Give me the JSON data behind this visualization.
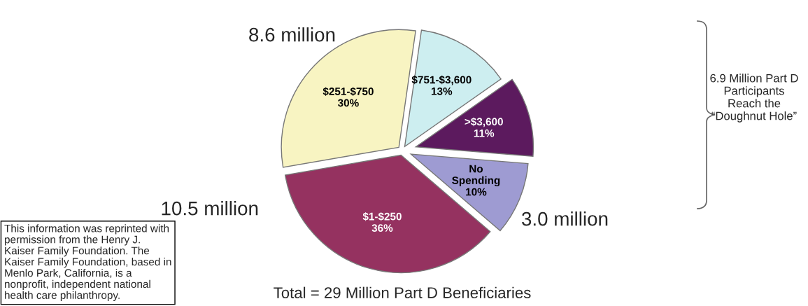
{
  "chart_data": {
    "type": "pie",
    "categories": [
      "$751-$3,600",
      "$251-$750",
      "$1-$250",
      "No\nSpending",
      ">$3,600"
    ],
    "values": [
      13,
      30,
      36,
      10,
      11
    ],
    "colors": [
      "#cdeef0",
      "#f8f4c2",
      "#953260",
      "#9e9bd2",
      "#5c1a5e"
    ],
    "value_labels": [
      "13%",
      "30%",
      "36%",
      "10%",
      "11%"
    ],
    "annotations": [
      "8.6 million",
      "10.5 million",
      "3.0 million",
      "6.9 Million Part D\nParticipants\nReach the\n“Doughnut Hole”",
      "Total = 29 Million Part D Beneficiaries",
      "This information was reprinted with\npermission from the Henry J.\nKaiser Family Foundation. The\nKaiser Family Foundation, based in\nMenlo Park, California, is a\nnonprofit, independent national\nhealth care philanthropy."
    ]
  }
}
